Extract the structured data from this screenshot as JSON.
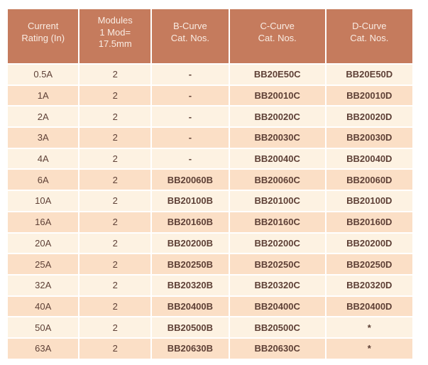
{
  "colors": {
    "header_bg": "#c57b5d",
    "header_text": "#f9ece3",
    "row_light_bg": "#fdf2e2",
    "row_dark_bg": "#fbdfc6",
    "body_text": "#5e4036",
    "grid_gap": "#ffffff"
  },
  "table": {
    "columns": [
      {
        "label": "Current\nRating (In)"
      },
      {
        "label": "Modules\n1 Mod=\n17.5mm"
      },
      {
        "label": "B-Curve\nCat. Nos."
      },
      {
        "label": "C-Curve\nCat. Nos."
      },
      {
        "label": "D-Curve\nCat. Nos."
      }
    ],
    "rows": [
      [
        "0.5A",
        "2",
        "-",
        "BB20E50C",
        "BB20E50D"
      ],
      [
        "1A",
        "2",
        "-",
        "BB20010C",
        "BB20010D"
      ],
      [
        "2A",
        "2",
        "-",
        "BB20020C",
        "BB20020D"
      ],
      [
        "3A",
        "2",
        "-",
        "BB20030C",
        "BB20030D"
      ],
      [
        "4A",
        "2",
        "-",
        "BB20040C",
        "BB20040D"
      ],
      [
        "6A",
        "2",
        "BB20060B",
        "BB20060C",
        "BB20060D"
      ],
      [
        "10A",
        "2",
        "BB20100B",
        "BB20100C",
        "BB20100D"
      ],
      [
        "16A",
        "2",
        "BB20160B",
        "BB20160C",
        "BB20160D"
      ],
      [
        "20A",
        "2",
        "BB20200B",
        "BB20200C",
        "BB20200D"
      ],
      [
        "25A",
        "2",
        "BB20250B",
        "BB20250C",
        "BB20250D"
      ],
      [
        "32A",
        "2",
        "BB20320B",
        "BB20320C",
        "BB20320D"
      ],
      [
        "40A",
        "2",
        "BB20400B",
        "BB20400C",
        "BB20400D"
      ],
      [
        "50A",
        "2",
        "BB20500B",
        "BB20500C",
        "*"
      ],
      [
        "63A",
        "2",
        "BB20630B",
        "BB20630C",
        "*"
      ]
    ]
  }
}
